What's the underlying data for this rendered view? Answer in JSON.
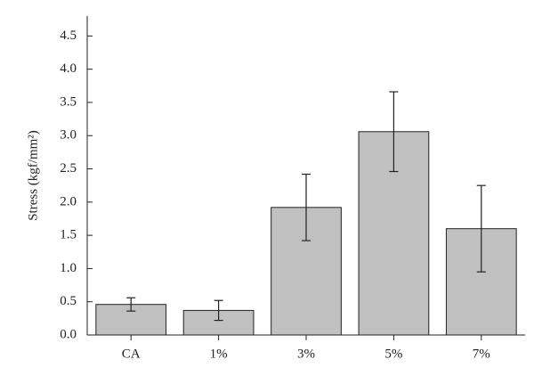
{
  "chart_data": {
    "type": "bar",
    "y_label": "Stress (kgf/mm²)",
    "categories": [
      "CA",
      "1%",
      "3%",
      "5%",
      "7%"
    ],
    "values": [
      0.46,
      0.37,
      1.92,
      3.06,
      1.6
    ],
    "errors": [
      0.1,
      0.15,
      0.5,
      0.6,
      0.65
    ],
    "color": "#c0c0c0",
    "ylim": [
      0,
      4.8
    ],
    "yticks": [
      {
        "value": 0,
        "label": "0.0"
      },
      {
        "value": 0.5,
        "label": "0.5"
      },
      {
        "value": 1,
        "label": "1.0"
      },
      {
        "value": 1.5,
        "label": "1.5"
      },
      {
        "value": 2,
        "label": "2.0"
      },
      {
        "value": 2.5,
        "label": "2.5"
      },
      {
        "value": 3,
        "label": "3.0"
      },
      {
        "value": 3.5,
        "label": "3.5"
      },
      {
        "value": 4,
        "label": "4.0"
      },
      {
        "value": 4.5,
        "label": "4.5"
      }
    ],
    "grid": false
  }
}
